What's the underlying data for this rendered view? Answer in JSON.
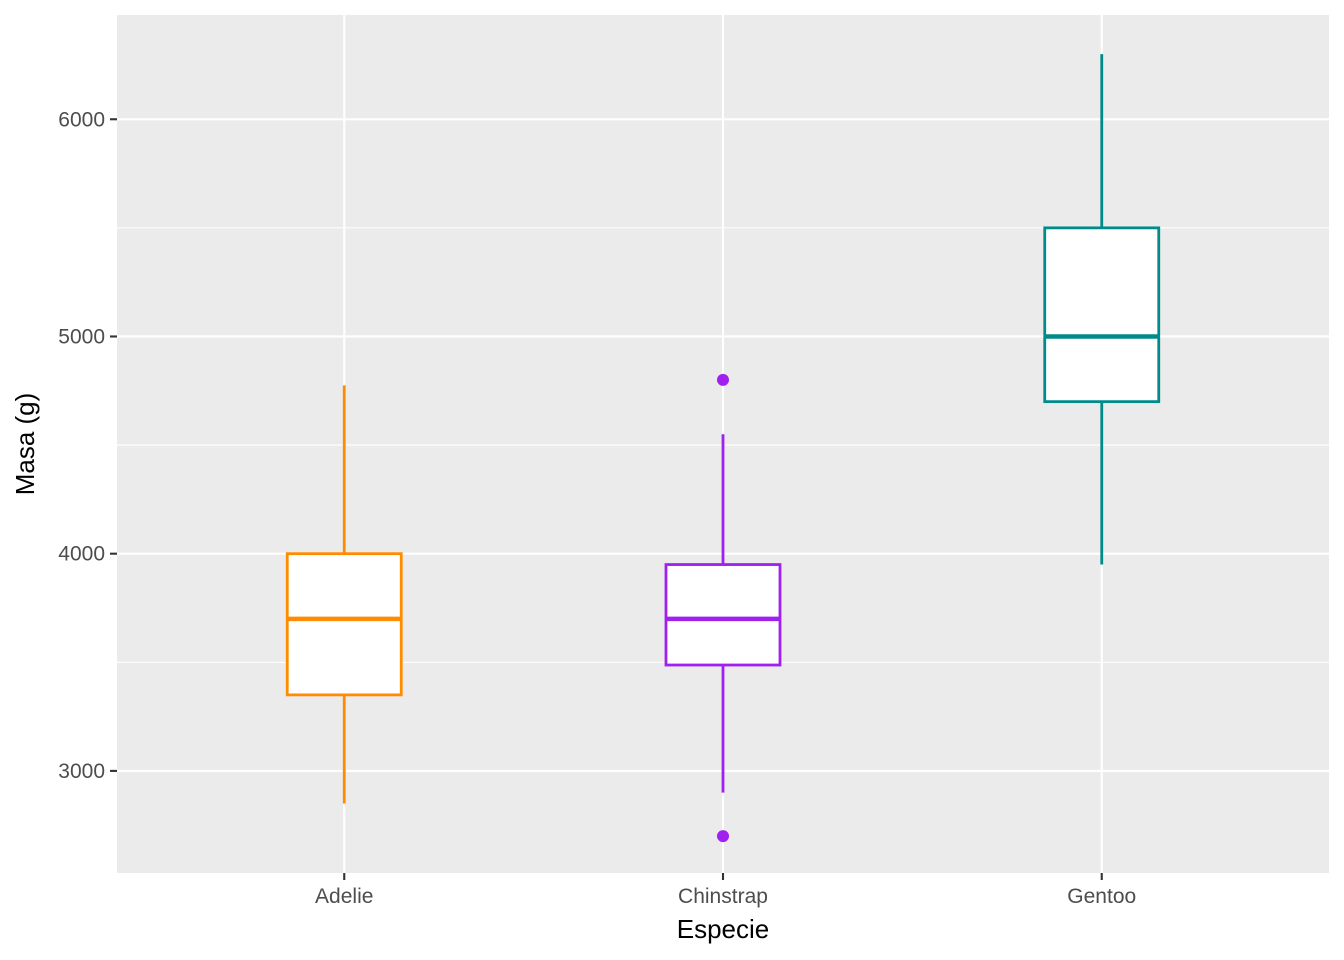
{
  "chart_data": {
    "type": "boxplot",
    "title": "",
    "xlabel": "Especie",
    "ylabel": "Masa (g)",
    "categories": [
      "Adelie",
      "Chinstrap",
      "Gentoo"
    ],
    "ylim": [
      2530,
      6480
    ],
    "y_ticks": [
      3000,
      4000,
      5000,
      6000
    ],
    "y_tick_labels": [
      "3000",
      "4000",
      "5000",
      "6000"
    ],
    "y_minor_ticks": [
      3500,
      4500,
      5500
    ],
    "grid": true,
    "legend": "none",
    "boxes": [
      {
        "category": "Adelie",
        "color": "#ff8c00",
        "whisker_low": 2850,
        "q1": 3350,
        "median": 3700,
        "q3": 4000,
        "whisker_high": 4775,
        "outliers": []
      },
      {
        "category": "Chinstrap",
        "color": "#a020f0",
        "whisker_low": 2900,
        "q1": 3487.5,
        "median": 3700,
        "q3": 3950,
        "whisker_high": 4550,
        "outliers": [
          2700,
          4800
        ]
      },
      {
        "category": "Gentoo",
        "color": "#008b8b",
        "whisker_low": 3950,
        "q1": 4700,
        "median": 5000,
        "q3": 5500,
        "whisker_high": 6300,
        "outliers": []
      }
    ]
  }
}
